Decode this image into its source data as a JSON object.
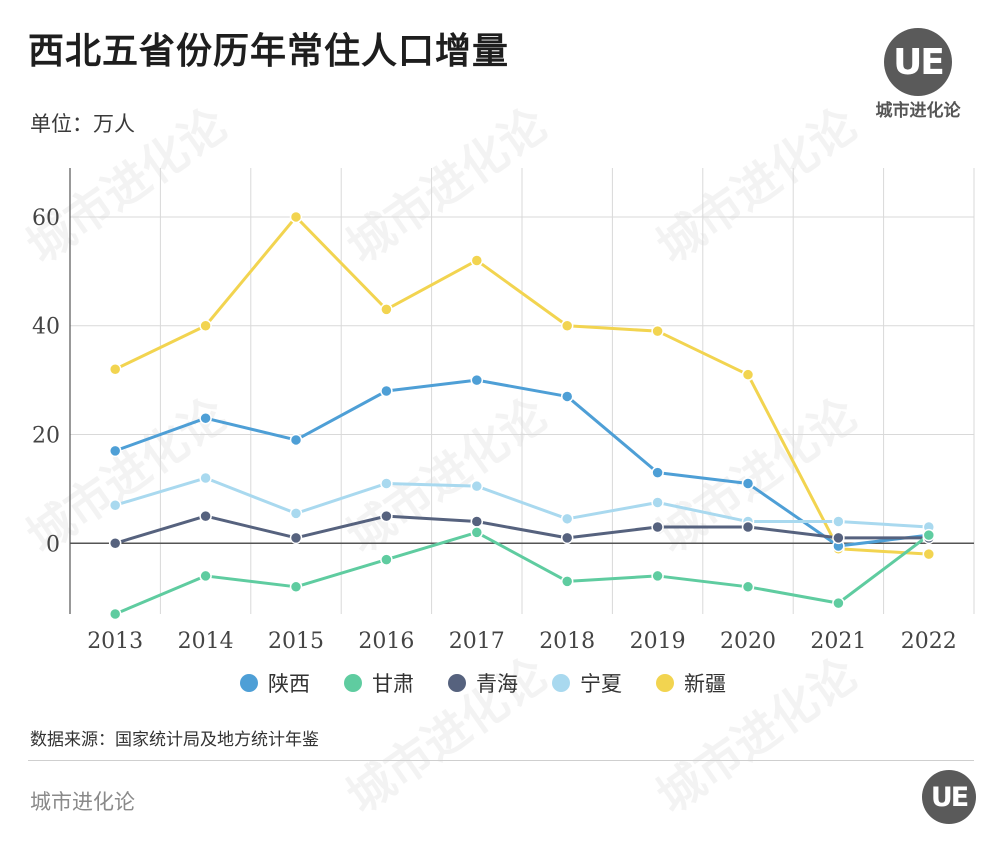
{
  "header": {
    "title": "西北五省份历年常住人口增量",
    "unit": "单位：万人"
  },
  "brand": {
    "logo_text": "UE",
    "name": "城市进化论",
    "watermark": "城市进化论"
  },
  "footer": {
    "source": "数据来源：国家统计局及地方统计年鉴",
    "name": "城市进化论",
    "logo_text": "UE"
  },
  "chart_data": {
    "type": "line",
    "title": "西北五省份历年常住人口增量",
    "ylabel": "单位：万人",
    "xlabel": "",
    "categories": [
      "2013",
      "2014",
      "2015",
      "2016",
      "2017",
      "2018",
      "2019",
      "2020",
      "2021",
      "2022"
    ],
    "ylim": [
      -13,
      69
    ],
    "yticks": [
      0,
      20,
      40,
      60
    ],
    "grid": true,
    "legend": "bottom",
    "series": [
      {
        "name": "陕西",
        "color": "#4e9fd6",
        "values": [
          17,
          23,
          19,
          28,
          30,
          27,
          13,
          11,
          -0.5,
          1.5
        ]
      },
      {
        "name": "甘肃",
        "color": "#5fcca0",
        "values": [
          -13,
          -6,
          -8,
          -3,
          2,
          -7,
          -6,
          -8,
          -11,
          1.5
        ]
      },
      {
        "name": "青海",
        "color": "#56627e",
        "values": [
          0,
          5,
          1,
          5,
          4,
          1,
          3,
          3,
          1,
          1
        ]
      },
      {
        "name": "宁夏",
        "color": "#a9d9ef",
        "values": [
          7,
          12,
          5.5,
          11,
          10.5,
          4.5,
          7.5,
          4,
          4,
          3
        ]
      },
      {
        "name": "新疆",
        "color": "#f2d450",
        "values": [
          32,
          40,
          60,
          43,
          52,
          40,
          39,
          31,
          -1,
          -2
        ]
      }
    ]
  }
}
